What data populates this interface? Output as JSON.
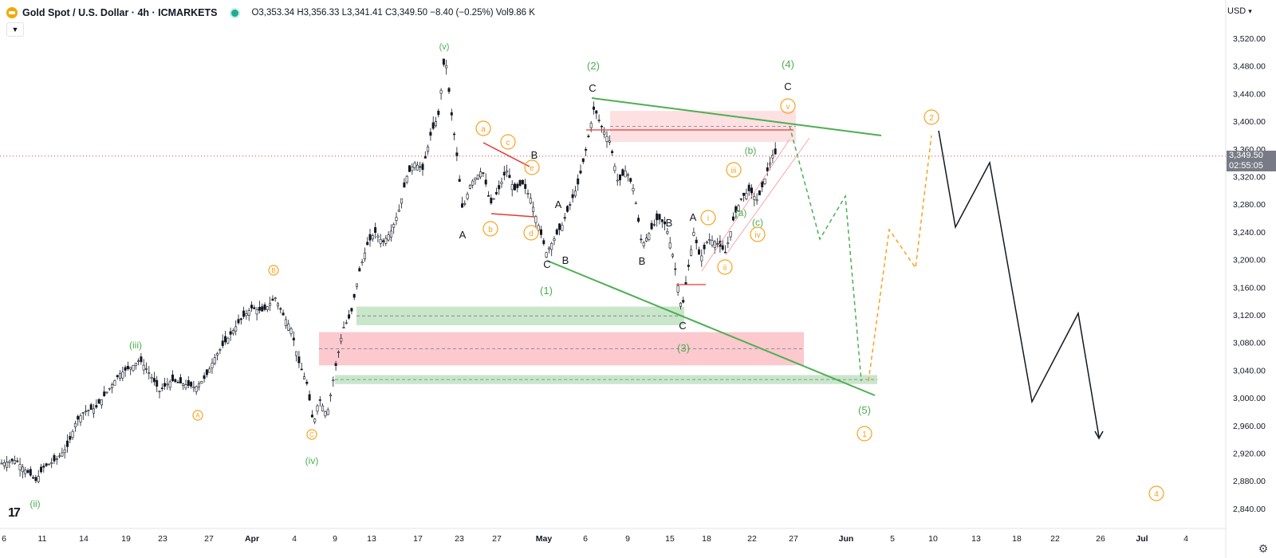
{
  "header": {
    "title": "Gold Spot / U.S. Dollar · 4h · ICMARKETS",
    "ohlc": "O3,353.34  H3,356.33  L3,341.41  C3,349.50  −8.40 (−0.25%)  Vol9.86 K"
  },
  "currency": "USD",
  "current_price": "3,349.50",
  "countdown": "02:55:05",
  "colors": {
    "up": "#131722",
    "down": "#131722",
    "green": "#4caf50",
    "orange": "#f7a21b",
    "red": "#e53935",
    "demand_zone": "#a5d6a7",
    "supply_zone": "#f8a5ad",
    "axis_text": "#131722"
  },
  "icons": {
    "logo": "tradingview-logo",
    "settings": "gear-icon",
    "collapse": "chevron-down-icon"
  },
  "chart_data": {
    "type": "candlestick",
    "title": "Gold Spot / U.S. Dollar · 4h · ICMARKETS",
    "ylim": [
      2810,
      3560
    ],
    "y_ticks": [
      "3,520.00",
      "3,480.00",
      "3,440.00",
      "3,400.00",
      "3,360.00",
      "3,320.00",
      "3,280.00",
      "3,240.00",
      "3,200.00",
      "3,160.00",
      "3,120.00",
      "3,080.00",
      "3,040.00",
      "3,000.00",
      "2,960.00",
      "2,920.00",
      "2,880.00",
      "2,840.00"
    ],
    "x_ticks": [
      "6",
      "11",
      "14",
      "19",
      "23",
      "27",
      "Apr",
      "4",
      "9",
      "13",
      "17",
      "23",
      "27",
      "May",
      "6",
      "9",
      "15",
      "18",
      "22",
      "27",
      "Jun",
      "5",
      "10",
      "13",
      "18",
      "22",
      "26",
      "Jul",
      "4"
    ],
    "price_path": [
      [
        0,
        2905
      ],
      [
        20,
        2910
      ],
      [
        35,
        2892
      ],
      [
        45,
        2880
      ],
      [
        55,
        2900
      ],
      [
        70,
        2910
      ],
      [
        85,
        2930
      ],
      [
        95,
        2965
      ],
      [
        105,
        2980
      ],
      [
        120,
        2985
      ],
      [
        135,
        3010
      ],
      [
        150,
        3035
      ],
      [
        165,
        3045
      ],
      [
        175,
        3055
      ],
      [
        185,
        3040
      ],
      [
        200,
        3010
      ],
      [
        215,
        3025
      ],
      [
        230,
        3020
      ],
      [
        245,
        3015
      ],
      [
        258,
        3030
      ],
      [
        270,
        3060
      ],
      [
        285,
        3085
      ],
      [
        300,
        3110
      ],
      [
        315,
        3130
      ],
      [
        330,
        3125
      ],
      [
        345,
        3145
      ],
      [
        355,
        3120
      ],
      [
        365,
        3100
      ],
      [
        375,
        3050
      ],
      [
        385,
        3020
      ],
      [
        393,
        2960
      ],
      [
        400,
        3000
      ],
      [
        410,
        2975
      ],
      [
        420,
        3040
      ],
      [
        430,
        3100
      ],
      [
        440,
        3120
      ],
      [
        450,
        3180
      ],
      [
        460,
        3220
      ],
      [
        470,
        3240
      ],
      [
        480,
        3225
      ],
      [
        490,
        3240
      ],
      [
        500,
        3270
      ],
      [
        510,
        3320
      ],
      [
        520,
        3340
      ],
      [
        530,
        3330
      ],
      [
        540,
        3380
      ],
      [
        550,
        3410
      ],
      [
        558,
        3500
      ],
      [
        565,
        3420
      ],
      [
        572,
        3360
      ],
      [
        580,
        3270
      ],
      [
        590,
        3310
      ],
      [
        605,
        3330
      ],
      [
        615,
        3280
      ],
      [
        625,
        3300
      ],
      [
        635,
        3330
      ],
      [
        645,
        3300
      ],
      [
        655,
        3310
      ],
      [
        665,
        3290
      ],
      [
        675,
        3250
      ],
      [
        685,
        3210
      ],
      [
        695,
        3230
      ],
      [
        705,
        3250
      ],
      [
        715,
        3280
      ],
      [
        725,
        3310
      ],
      [
        735,
        3360
      ],
      [
        745,
        3420
      ],
      [
        755,
        3390
      ],
      [
        765,
        3370
      ],
      [
        775,
        3310
      ],
      [
        785,
        3330
      ],
      [
        795,
        3300
      ],
      [
        805,
        3220
      ],
      [
        815,
        3240
      ],
      [
        825,
        3260
      ],
      [
        835,
        3250
      ],
      [
        845,
        3200
      ],
      [
        855,
        3125
      ],
      [
        862,
        3180
      ],
      [
        870,
        3240
      ],
      [
        878,
        3200
      ],
      [
        888,
        3230
      ],
      [
        898,
        3225
      ],
      [
        910,
        3210
      ],
      [
        920,
        3260
      ],
      [
        930,
        3290
      ],
      [
        940,
        3300
      ],
      [
        950,
        3285
      ],
      [
        960,
        3320
      ],
      [
        970,
        3355
      ],
      [
        975,
        3349.5
      ]
    ],
    "zones": [
      {
        "type": "demand",
        "y_top": 3132,
        "y_bottom": 3105
      },
      {
        "type": "supply",
        "y_top": 3095,
        "y_bottom": 3047
      },
      {
        "type": "demand",
        "y_top": 3033,
        "y_bottom": 3020
      },
      {
        "type": "supply",
        "y_top": 3415,
        "y_bottom": 3370
      }
    ],
    "wave_labels": [
      {
        "text": "(v)",
        "color": "green",
        "circled": false
      },
      {
        "text": "(2)",
        "color": "green",
        "circled": false
      },
      {
        "text": "(4)",
        "color": "green",
        "circled": false
      },
      {
        "text": "C",
        "color": "black",
        "circled": false
      },
      {
        "text": "C",
        "color": "black",
        "circled": false
      },
      {
        "text": "v",
        "color": "orange",
        "circled": true
      },
      {
        "text": "a",
        "color": "orange",
        "circled": true
      },
      {
        "text": "c",
        "color": "orange",
        "circled": true
      },
      {
        "text": "B",
        "color": "black",
        "circled": false
      },
      {
        "text": "e",
        "color": "orange",
        "circled": true
      },
      {
        "text": "(b)",
        "color": "green",
        "circled": false
      },
      {
        "text": "iii",
        "color": "orange",
        "circled": true
      },
      {
        "text": "A",
        "color": "black",
        "circled": false
      },
      {
        "text": "A",
        "color": "black",
        "circled": false
      },
      {
        "text": "(a)",
        "color": "green",
        "circled": false
      },
      {
        "text": "B",
        "color": "black",
        "circled": false
      },
      {
        "text": "i",
        "color": "orange",
        "circled": true
      },
      {
        "text": "(c)",
        "color": "green",
        "circled": false
      },
      {
        "text": "b",
        "color": "orange",
        "circled": true
      },
      {
        "text": "d",
        "color": "orange",
        "circled": true
      },
      {
        "text": "iv",
        "color": "orange",
        "circled": true
      },
      {
        "text": "A",
        "color": "black",
        "circled": false
      },
      {
        "text": "B",
        "color": "black",
        "circled": false
      },
      {
        "text": "ii",
        "color": "orange",
        "circled": true
      },
      {
        "text": "C",
        "color": "black",
        "circled": false
      },
      {
        "text": "(1)",
        "color": "green",
        "circled": false
      },
      {
        "text": "B",
        "color": "black",
        "circled": false
      },
      {
        "text": "B",
        "color": "orange",
        "circled": true
      },
      {
        "text": "(iii)",
        "color": "green",
        "circled": false
      },
      {
        "text": "C",
        "color": "black",
        "circled": false
      },
      {
        "text": "(3)",
        "color": "green",
        "circled": false
      },
      {
        "text": "A",
        "color": "orange",
        "circled": true
      },
      {
        "text": "(5)",
        "color": "green",
        "circled": false
      },
      {
        "text": "C",
        "color": "orange",
        "circled": true
      },
      {
        "text": "1",
        "color": "orange",
        "circled": true
      },
      {
        "text": "(iv)",
        "color": "green",
        "circled": false
      },
      {
        "text": "(ii)",
        "color": "green",
        "circled": false
      },
      {
        "text": "2",
        "color": "orange",
        "circled": true
      },
      {
        "text": "4",
        "color": "orange",
        "circled": true
      }
    ]
  }
}
